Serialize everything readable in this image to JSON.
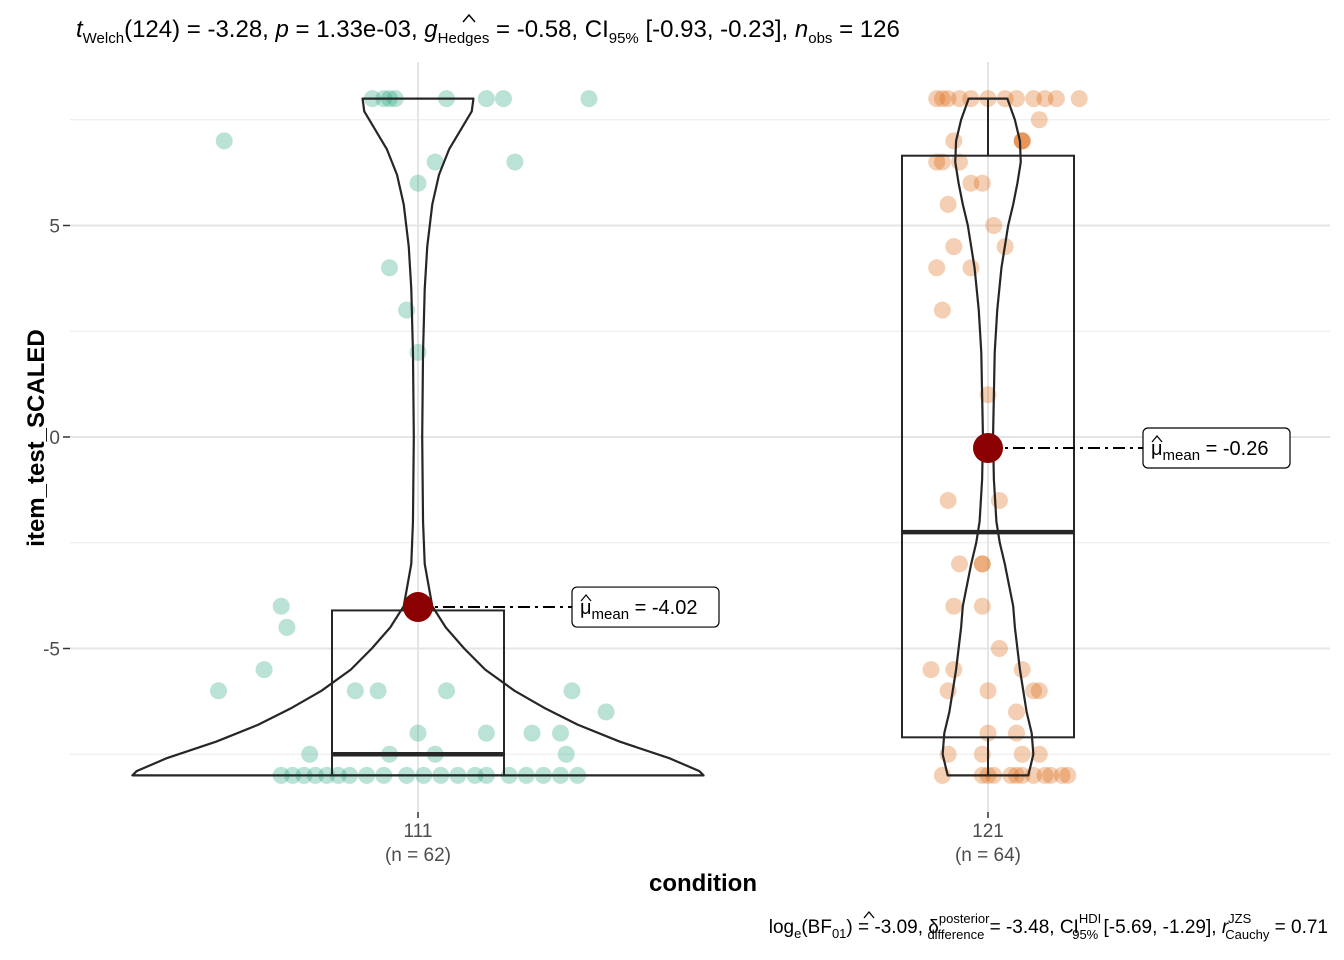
{
  "chart_data": {
    "type": "violin-box-scatter",
    "title": {
      "t": "t",
      "t_sub": "Welch",
      "df": "(124)",
      "t_value": " = -3.28, ",
      "p": "p",
      "p_value": " = 1.33e-03, ",
      "g": "g",
      "g_sub": "Hedges",
      "g_value": " = -0.58, ",
      "ci": "CI",
      "ci_sub": "95%",
      "ci_value": " [-0.93, -0.23], ",
      "n": "n",
      "n_sub": "obs",
      "n_value": " = 126"
    },
    "caption": {
      "log": "log",
      "log_sub": "e",
      "bf_open": "(BF",
      "bf_sub": "01",
      "bf_value": ") = -3.09, ",
      "delta": "δ",
      "delta_sup": "posterior",
      "delta_sub": "difference",
      "delta_value": " = -3.48, ",
      "ci": "CI",
      "ci_sup": "HDI",
      "ci_sub": "95%",
      "ci_value": " [-5.69, -1.29], ",
      "r": "r",
      "r_sup": "JZS",
      "r_sub": "Cauchy",
      "r_value": " = 0.71"
    },
    "xlabel": "condition",
    "ylabel": "item_test_SCALED",
    "ylim": [
      -8.9,
      8.9
    ],
    "yticks": [
      5,
      0,
      -5
    ],
    "ytick_labels": [
      "5",
      "0",
      "-5"
    ],
    "grid": true,
    "groups": [
      {
        "category": "111",
        "n_label": "(n = 62)",
        "color": "#1b9e77",
        "mean": -4.02,
        "mean_label": "= -4.02",
        "box": {
          "q1": -8.0,
          "median": -7.5,
          "q3": -4.1,
          "lower": -8.0,
          "upper": -4.1
        },
        "violin": [
          [
            -8.0,
            3.4
          ],
          [
            -7.9,
            3.35
          ],
          [
            -7.6,
            3.0
          ],
          [
            -7.2,
            2.4
          ],
          [
            -6.8,
            1.9
          ],
          [
            -6.4,
            1.5
          ],
          [
            -6.0,
            1.15
          ],
          [
            -5.5,
            0.8
          ],
          [
            -5.0,
            0.55
          ],
          [
            -4.5,
            0.33
          ],
          [
            -4.0,
            0.17
          ],
          [
            -3.0,
            0.08
          ],
          [
            -2.0,
            0.06
          ],
          [
            0.0,
            0.05
          ],
          [
            2.0,
            0.06
          ],
          [
            3.5,
            0.08
          ],
          [
            4.5,
            0.11
          ],
          [
            5.5,
            0.17
          ],
          [
            6.2,
            0.25
          ],
          [
            6.8,
            0.37
          ],
          [
            7.3,
            0.52
          ],
          [
            7.7,
            0.64
          ],
          [
            8.0,
            0.66
          ]
        ],
        "points": [
          [
            -0.08,
            8.0
          ],
          [
            -0.06,
            8.0
          ],
          [
            -0.05,
            8.0
          ],
          [
            -0.04,
            8.0
          ],
          [
            0.05,
            8.0
          ],
          [
            0.12,
            8.0
          ],
          [
            0.15,
            8.0
          ],
          [
            0.3,
            8.0
          ],
          [
            -0.34,
            7.0
          ],
          [
            0.03,
            6.5
          ],
          [
            0.17,
            6.5
          ],
          [
            0.0,
            6.0
          ],
          [
            -0.05,
            4.0
          ],
          [
            -0.02,
            3.0
          ],
          [
            0.0,
            2.0
          ],
          [
            -0.24,
            -4.0
          ],
          [
            -0.23,
            -4.5
          ],
          [
            -0.27,
            -5.5
          ],
          [
            -0.35,
            -6.0
          ],
          [
            -0.11,
            -6.0
          ],
          [
            -0.07,
            -6.0
          ],
          [
            0.05,
            -6.0
          ],
          [
            0.27,
            -6.0
          ],
          [
            0.33,
            -6.5
          ],
          [
            0.0,
            -7.0
          ],
          [
            0.12,
            -7.0
          ],
          [
            0.2,
            -7.0
          ],
          [
            0.25,
            -7.0
          ],
          [
            -0.19,
            -7.5
          ],
          [
            -0.05,
            -7.5
          ],
          [
            0.03,
            -7.5
          ],
          [
            0.26,
            -7.5
          ],
          [
            -0.24,
            -8.0
          ],
          [
            -0.22,
            -8.0
          ],
          [
            -0.2,
            -8.0
          ],
          [
            -0.18,
            -8.0
          ],
          [
            -0.16,
            -8.0
          ],
          [
            -0.14,
            -8.0
          ],
          [
            -0.12,
            -8.0
          ],
          [
            -0.09,
            -8.0
          ],
          [
            -0.06,
            -8.0
          ],
          [
            -0.02,
            -8.0
          ],
          [
            0.01,
            -8.0
          ],
          [
            0.04,
            -8.0
          ],
          [
            0.07,
            -8.0
          ],
          [
            0.1,
            -8.0
          ],
          [
            0.12,
            -8.0
          ],
          [
            0.16,
            -8.0
          ],
          [
            0.19,
            -8.0
          ],
          [
            0.22,
            -8.0
          ],
          [
            0.25,
            -8.0
          ],
          [
            0.28,
            -8.0
          ]
        ]
      },
      {
        "category": "121",
        "n_label": "(n = 64)",
        "color": "#d95f02",
        "mean": -0.26,
        "mean_label": "= -0.26",
        "box": {
          "q1": -7.1,
          "median": -2.25,
          "q3": 6.65,
          "lower": -8.0,
          "upper": 8.0
        },
        "violin": [
          [
            -8.0,
            0.48
          ],
          [
            -7.5,
            0.54
          ],
          [
            -7.0,
            0.52
          ],
          [
            -6.5,
            0.46
          ],
          [
            -6.0,
            0.42
          ],
          [
            -5.5,
            0.38
          ],
          [
            -5.0,
            0.35
          ],
          [
            -4.5,
            0.32
          ],
          [
            -4.0,
            0.3
          ],
          [
            -3.5,
            0.25
          ],
          [
            -3.0,
            0.2
          ],
          [
            -2.5,
            0.14
          ],
          [
            -2.0,
            0.1
          ],
          [
            -1.0,
            0.07
          ],
          [
            0.0,
            0.06
          ],
          [
            1.0,
            0.07
          ],
          [
            2.0,
            0.08
          ],
          [
            3.0,
            0.11
          ],
          [
            4.0,
            0.16
          ],
          [
            5.0,
            0.24
          ],
          [
            5.5,
            0.3
          ],
          [
            6.0,
            0.35
          ],
          [
            6.5,
            0.39
          ],
          [
            7.0,
            0.38
          ],
          [
            7.5,
            0.32
          ],
          [
            8.0,
            0.23
          ]
        ],
        "points": [
          [
            -0.09,
            8.0
          ],
          [
            -0.08,
            8.0
          ],
          [
            -0.07,
            8.0
          ],
          [
            -0.05,
            8.0
          ],
          [
            -0.03,
            8.0
          ],
          [
            0.0,
            8.0
          ],
          [
            0.03,
            8.0
          ],
          [
            0.05,
            8.0
          ],
          [
            0.08,
            8.0
          ],
          [
            0.1,
            8.0
          ],
          [
            0.12,
            8.0
          ],
          [
            0.16,
            8.0
          ],
          [
            0.09,
            7.5
          ],
          [
            -0.06,
            7.0
          ],
          [
            0.06,
            7.0
          ],
          [
            0.06,
            7.0
          ],
          [
            0.06,
            7.0
          ],
          [
            -0.09,
            6.5
          ],
          [
            -0.08,
            6.5
          ],
          [
            -0.05,
            6.5
          ],
          [
            -0.03,
            6.0
          ],
          [
            -0.01,
            6.0
          ],
          [
            -0.07,
            5.5
          ],
          [
            0.01,
            5.0
          ],
          [
            -0.06,
            4.5
          ],
          [
            0.03,
            4.5
          ],
          [
            -0.09,
            4.0
          ],
          [
            -0.03,
            4.0
          ],
          [
            -0.08,
            3.0
          ],
          [
            0.0,
            1.0
          ],
          [
            -0.07,
            -1.5
          ],
          [
            0.02,
            -1.5
          ],
          [
            -0.05,
            -3.0
          ],
          [
            -0.01,
            -3.0
          ],
          [
            -0.01,
            -3.0
          ],
          [
            -0.06,
            -4.0
          ],
          [
            -0.01,
            -4.0
          ],
          [
            -0.1,
            -5.5
          ],
          [
            -0.06,
            -5.5
          ],
          [
            -0.07,
            -6.0
          ],
          [
            0.0,
            -6.0
          ],
          [
            0.02,
            -5.0
          ],
          [
            0.06,
            -5.5
          ],
          [
            0.05,
            -6.5
          ],
          [
            0.09,
            -6.0
          ],
          [
            0.08,
            -6.0
          ],
          [
            -0.07,
            -7.5
          ],
          [
            -0.01,
            -7.5
          ],
          [
            0.0,
            -7.0
          ],
          [
            0.05,
            -7.0
          ],
          [
            0.06,
            -7.5
          ],
          [
            0.09,
            -7.5
          ],
          [
            -0.08,
            -8.0
          ],
          [
            -0.01,
            -8.0
          ],
          [
            0.0,
            -8.0
          ],
          [
            0.01,
            -8.0
          ],
          [
            0.04,
            -8.0
          ],
          [
            0.05,
            -8.0
          ],
          [
            0.06,
            -8.0
          ],
          [
            0.08,
            -8.0
          ],
          [
            0.1,
            -8.0
          ],
          [
            0.11,
            -8.0
          ],
          [
            0.13,
            -8.0
          ],
          [
            0.14,
            -8.0
          ]
        ]
      }
    ],
    "mean_symbol": "μ",
    "mean_sub": "mean"
  }
}
